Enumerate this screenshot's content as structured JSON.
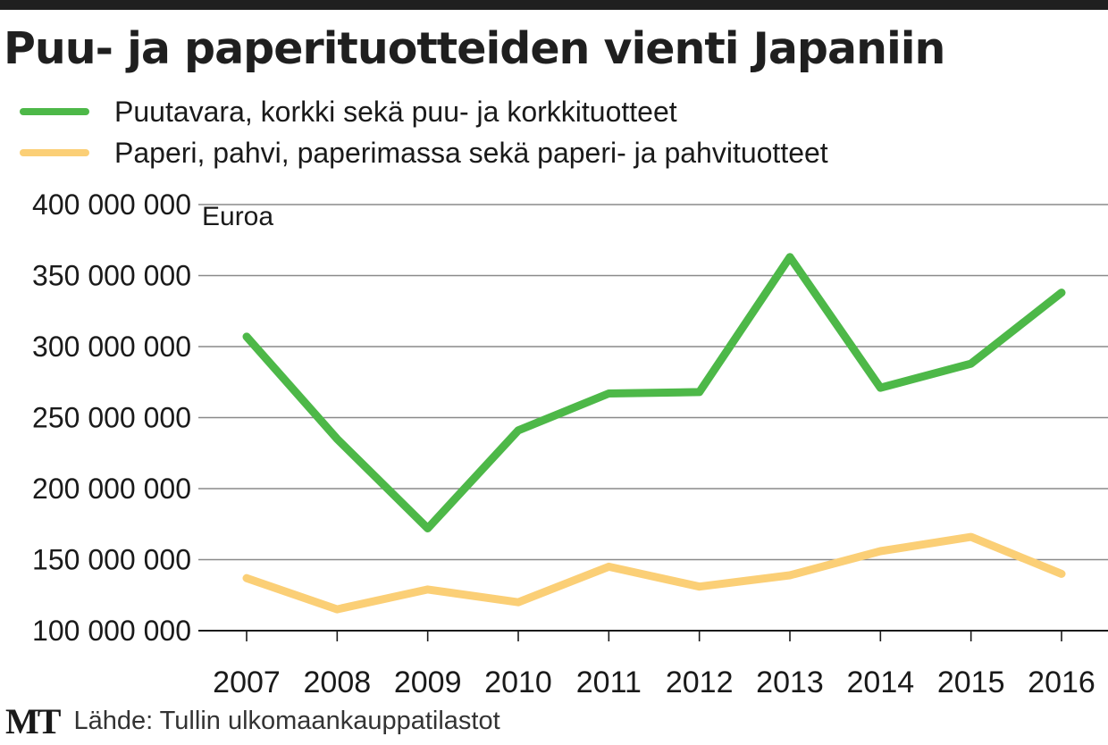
{
  "title": "Puu- ja paperituotteiden vienti Japaniin",
  "legend": [
    {
      "label": "Puutavara, korkki sekä puu- ja korkkituotteet",
      "color": "#4db848"
    },
    {
      "label": "Paperi, pahvi, paperimassa sekä paperi- ja pahvituotteet",
      "color": "#fbcf76"
    }
  ],
  "footer": {
    "logo": "MT",
    "source": "Lähde: Tullin ulkomaankauppatilastot"
  },
  "chart_data": {
    "type": "line",
    "title": "Puu- ja paperituotteiden vienti Japaniin",
    "ylabel": "Euroa",
    "xlabel": "",
    "x": [
      "2007",
      "2008",
      "2009",
      "2010",
      "2011",
      "2012",
      "2013",
      "2014",
      "2015",
      "2016"
    ],
    "ylim": [
      100000000,
      400000000
    ],
    "yticks": [
      100000000,
      150000000,
      200000000,
      250000000,
      300000000,
      350000000,
      400000000
    ],
    "ytick_labels": [
      "100 000 000",
      "150 000 000",
      "200 000 000",
      "250 000 000",
      "300 000 000",
      "350 000 000",
      "400 000 000"
    ],
    "grid": true,
    "legend_position": "top-left",
    "series": [
      {
        "name": "Puutavara, korkki sekä puu- ja korkkituotteet",
        "color": "#4db848",
        "values": [
          307000000,
          235000000,
          172000000,
          241000000,
          267000000,
          268000000,
          363000000,
          271000000,
          288000000,
          338000000
        ]
      },
      {
        "name": "Paperi, pahvi, paperimassa sekä paperi- ja pahvituotteet",
        "color": "#fbcf76",
        "values": [
          137000000,
          115000000,
          129000000,
          120000000,
          145000000,
          131000000,
          139000000,
          156000000,
          166000000,
          140000000
        ]
      }
    ]
  }
}
